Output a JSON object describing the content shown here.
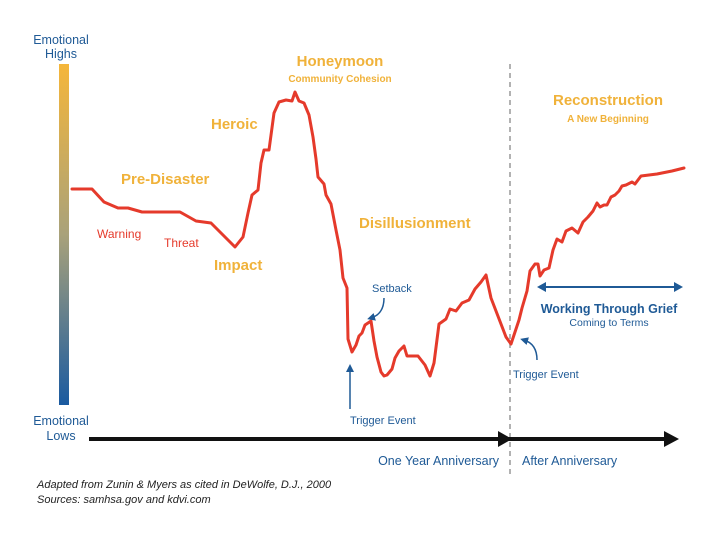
{
  "axis": {
    "top_line1": "Emotional",
    "top_line2": "Highs",
    "bottom_line1": "Emotional",
    "bottom_line2": "Lows",
    "gradient_colors": [
      "#f5b63a",
      "#1a5aa0"
    ]
  },
  "phases": {
    "pre_disaster": "Pre-Disaster",
    "heroic": "Heroic",
    "impact": "Impact",
    "honeymoon": "Honeymoon",
    "honeymoon_sub": "Community Cohesion",
    "disillusionment": "Disillusionment",
    "reconstruction": "Reconstruction",
    "reconstruction_sub": "A New Beginning"
  },
  "events": {
    "warning": "Warning",
    "threat": "Threat",
    "setback": "Setback",
    "trigger_event_1": "Trigger Event",
    "trigger_event_2": "Trigger Event",
    "working_through_grief": "Working Through Grief",
    "coming_to_terms": "Coming to Terms"
  },
  "timeline": {
    "one_year": "One Year Anniversary",
    "after": "After Anniversary"
  },
  "source": {
    "line1": "Adapted from Zunin & Myers as cited in DeWolfe, D.J., 2000",
    "line2": "Sources: samhsa.gov and kdvi.com"
  },
  "colors": {
    "curve": "#e53a2b",
    "gold": "#f0b23a",
    "blue": "#1f5a96",
    "timeline": "#111111",
    "divider": "#999999"
  }
}
